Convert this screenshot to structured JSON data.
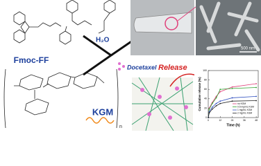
{
  "labels": {
    "fmoc": "Fmoc-FF",
    "water": "H₂O",
    "kgm": "KGM",
    "n": "n",
    "drug": "Docetaxel",
    "release": "Release",
    "scale": "500 nm"
  },
  "chart_data": {
    "type": "line",
    "xlabel": "Time (h)",
    "ylabel": "Cumulative release (%)",
    "x": [
      0,
      1,
      4,
      8,
      12,
      24,
      48
    ],
    "xlim": [
      0,
      50
    ],
    "xticks": [
      0,
      12,
      24,
      36,
      48
    ],
    "ylim": [
      0,
      100
    ],
    "yticks": [
      0,
      20,
      40,
      60,
      80,
      100
    ],
    "series": [
      {
        "name": "no KGM",
        "color": "#e0407a",
        "values": [
          0,
          20,
          32,
          45,
          55,
          65,
          72
        ]
      },
      {
        "name": "0.5 mg/mL KGM",
        "color": "#2ca02c",
        "values": [
          0,
          18,
          30,
          42,
          60,
          62,
          64
        ]
      },
      {
        "name": "1 mg/mL KGM",
        "color": "#3050c0",
        "values": [
          0,
          12,
          22,
          30,
          35,
          42,
          45
        ]
      },
      {
        "name": "2 mg/mL KGM",
        "color": "#222222",
        "values": [
          0,
          10,
          18,
          25,
          30,
          35,
          36
        ]
      }
    ]
  }
}
